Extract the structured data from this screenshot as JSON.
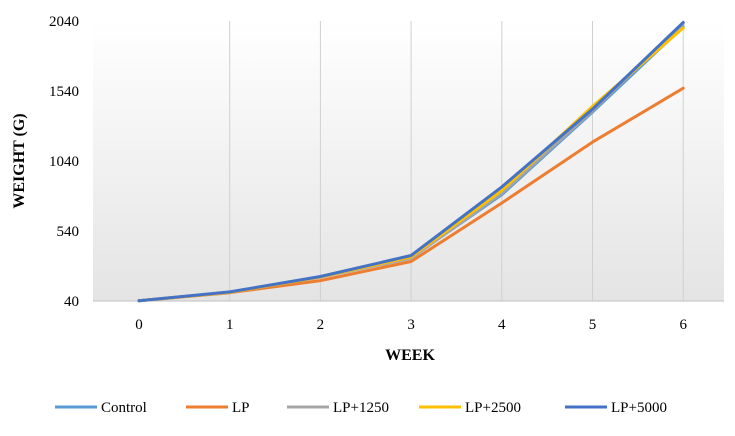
{
  "chart_data": {
    "type": "line",
    "title": "",
    "xlabel": "WEEK",
    "ylabel": "WEIGHT (G)",
    "x": [
      0,
      1,
      2,
      3,
      4,
      5,
      6
    ],
    "xlim": [
      0,
      6
    ],
    "ylim": [
      40,
      2040
    ],
    "yticks": [
      40,
      540,
      1040,
      1540,
      2040
    ],
    "grid": "vertical gridlines",
    "legend_position": "bottom",
    "series": [
      {
        "name": "Control",
        "color": "#5b9bd5",
        "values": [
          42,
          103,
          212,
          350,
          800,
          1390,
          2000
        ]
      },
      {
        "name": "LP",
        "color": "#ed7d31",
        "values": [
          42,
          99,
          186,
          322,
          740,
          1175,
          1560
        ]
      },
      {
        "name": "LP+1250",
        "color": "#a5a5a5",
        "values": [
          42,
          103,
          210,
          345,
          810,
          1400,
          2020
        ]
      },
      {
        "name": "LP+2500",
        "color": "#ffc000",
        "values": [
          42,
          103,
          212,
          355,
          830,
          1430,
          1990
        ]
      },
      {
        "name": "LP+5000",
        "color": "#4472c4",
        "values": [
          42,
          105,
          215,
          365,
          855,
          1410,
          2030
        ]
      }
    ]
  }
}
